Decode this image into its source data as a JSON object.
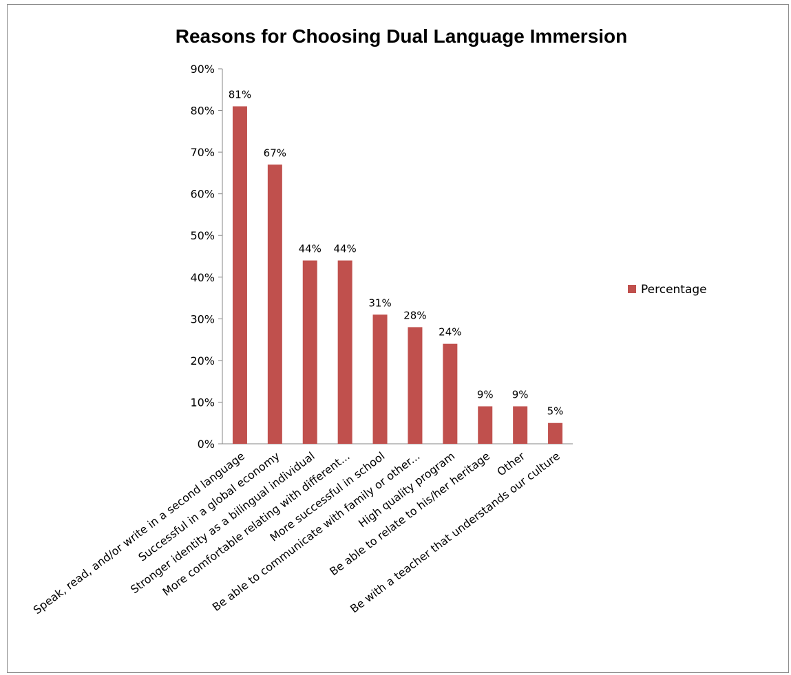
{
  "chart_data": {
    "type": "bar",
    "title": "Reasons for Choosing Dual Language Immersion",
    "xlabel": "",
    "ylabel": "",
    "ylim": [
      0,
      90
    ],
    "yticks": [
      "0%",
      "10%",
      "20%",
      "30%",
      "40%",
      "50%",
      "60%",
      "70%",
      "80%",
      "90%"
    ],
    "grid": false,
    "legend_position": "right",
    "categories": [
      "Speak, read, and/or write in a second language",
      "Successful in a global economy",
      "Stronger identity as a bilingual individual",
      "More comfortable relating with different...",
      "More successful in school",
      "Be able to communicate with family or other...",
      "High quality program",
      "Be able to relate to his/her heritage",
      "Other",
      "Be with a teacher that understands our culture"
    ],
    "series": [
      {
        "name": "Percentage",
        "color": "#c0504d",
        "values": [
          81,
          67,
          44,
          44,
          31,
          28,
          24,
          9,
          9,
          5
        ],
        "labels": [
          "81%",
          "67%",
          "44%",
          "44%",
          "31%",
          "28%",
          "24%",
          "9%",
          "9%",
          "5%"
        ]
      }
    ]
  }
}
